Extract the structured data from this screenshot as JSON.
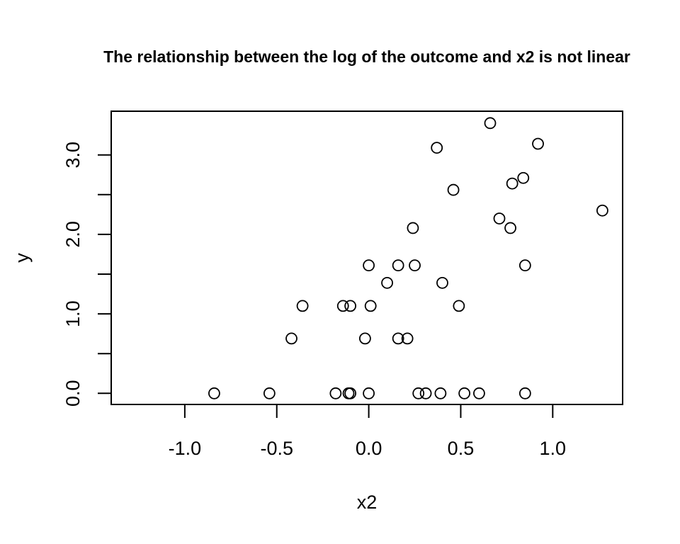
{
  "chart_data": {
    "type": "scatter",
    "title": "The relationship between the log of the outcome and x2 is not linear",
    "xlabel": "x2",
    "ylabel": "y",
    "xlim": [
      -1.4,
      1.38
    ],
    "ylim": [
      -0.14,
      3.55
    ],
    "x_ticks": [
      -1.0,
      -0.5,
      0.0,
      0.5,
      1.0
    ],
    "x_tick_labels": [
      "-1.0",
      "-0.5",
      "0.0",
      "0.5",
      "1.0"
    ],
    "y_ticks": [
      0.0,
      0.5,
      1.0,
      1.5,
      2.0,
      2.5,
      3.0
    ],
    "y_tick_labels": [
      "0.0",
      "",
      "1.0",
      "",
      "2.0",
      "",
      "3.0"
    ],
    "grid": false,
    "marker": "open-circle",
    "points": [
      {
        "x": -0.84,
        "y": 0.0
      },
      {
        "x": -0.54,
        "y": 0.0
      },
      {
        "x": -0.18,
        "y": 0.0
      },
      {
        "x": -0.11,
        "y": 0.0
      },
      {
        "x": -0.1,
        "y": 0.0
      },
      {
        "x": 0.0,
        "y": 0.0
      },
      {
        "x": 0.27,
        "y": 0.0
      },
      {
        "x": 0.31,
        "y": 0.0
      },
      {
        "x": 0.39,
        "y": 0.0
      },
      {
        "x": 0.52,
        "y": 0.0
      },
      {
        "x": 0.6,
        "y": 0.0
      },
      {
        "x": 0.85,
        "y": 0.0
      },
      {
        "x": -0.42,
        "y": 0.69
      },
      {
        "x": -0.02,
        "y": 0.69
      },
      {
        "x": 0.16,
        "y": 0.69
      },
      {
        "x": 0.21,
        "y": 0.69
      },
      {
        "x": -0.36,
        "y": 1.1
      },
      {
        "x": -0.14,
        "y": 1.1
      },
      {
        "x": -0.1,
        "y": 1.1
      },
      {
        "x": 0.01,
        "y": 1.1
      },
      {
        "x": 0.49,
        "y": 1.1
      },
      {
        "x": 0.1,
        "y": 1.39
      },
      {
        "x": 0.4,
        "y": 1.39
      },
      {
        "x": 0.0,
        "y": 1.61
      },
      {
        "x": 0.16,
        "y": 1.61
      },
      {
        "x": 0.25,
        "y": 1.61
      },
      {
        "x": 0.85,
        "y": 1.61
      },
      {
        "x": 0.24,
        "y": 2.08
      },
      {
        "x": 0.77,
        "y": 2.08
      },
      {
        "x": 0.71,
        "y": 2.2
      },
      {
        "x": 1.27,
        "y": 2.3
      },
      {
        "x": 0.46,
        "y": 2.56
      },
      {
        "x": 0.78,
        "y": 2.64
      },
      {
        "x": 0.84,
        "y": 2.71
      },
      {
        "x": 0.37,
        "y": 3.09
      },
      {
        "x": 0.92,
        "y": 3.14
      },
      {
        "x": 0.66,
        "y": 3.4
      }
    ]
  }
}
